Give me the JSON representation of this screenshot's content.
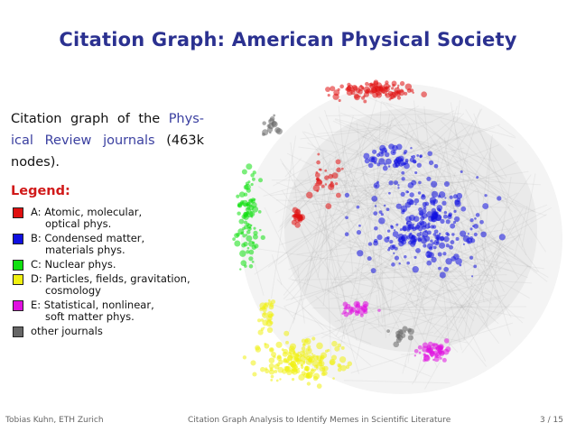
{
  "title": "Citation Graph: American Physical Society",
  "intro": {
    "before": "Citation graph of the ",
    "link": "Phys­ical Review journals",
    "after": " (463k nodes)."
  },
  "legend": {
    "heading": "Legend:",
    "items": [
      {
        "color": "#e01010",
        "lines": [
          "A: Atomic, molecular,",
          "optical phys."
        ],
        "name": "legend-item-atomic"
      },
      {
        "color": "#1010e0",
        "lines": [
          "B: Condensed matter,",
          "materials phys."
        ],
        "name": "legend-item-condensed"
      },
      {
        "color": "#10e010",
        "lines": [
          "C: Nuclear phys."
        ],
        "name": "legend-item-nuclear"
      },
      {
        "color": "#f0f010",
        "lines": [
          "D: Particles, fields, gravitation,",
          "cosmology"
        ],
        "name": "legend-item-particles"
      },
      {
        "color": "#e010e0",
        "lines": [
          "E: Statistical, nonlinear,",
          "soft matter phys."
        ],
        "name": "legend-item-statistical"
      },
      {
        "color": "#666666",
        "lines": [
          "other journals"
        ],
        "name": "legend-item-other"
      }
    ]
  },
  "footer": {
    "author": "Tobias Kuhn, ETH Zurich",
    "talk": "Citation Graph Analysis to Identify Memes in Scientific Literature",
    "page": "3 / 15"
  }
}
